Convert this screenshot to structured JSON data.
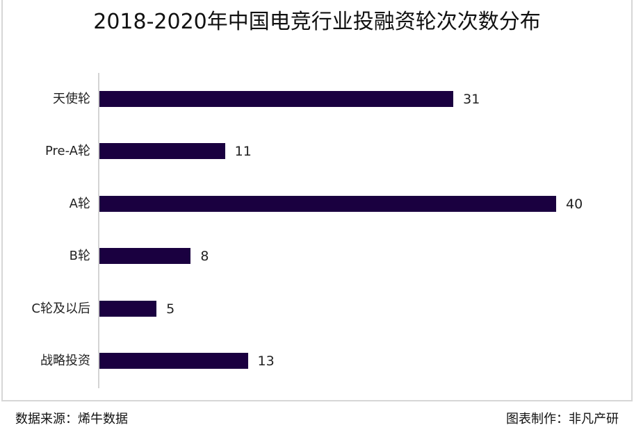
{
  "header": {
    "title": "2018-2020年中国电竞行业投融资轮次次数分布"
  },
  "footer": {
    "source": "数据来源：烯牛数据",
    "credit": "图表制作：非凡产研"
  },
  "colors": {
    "bar": "#1a0040",
    "axis": "#d4d4d4",
    "frame": "#d6d6d6"
  },
  "chart_data": {
    "type": "bar",
    "orientation": "horizontal",
    "title": "2018-2020年中国电竞行业投融资轮次次数分布",
    "xlabel": "",
    "ylabel": "",
    "categories": [
      "天使轮",
      "Pre-A轮",
      "A轮",
      "B轮",
      "C轮及以后",
      "战略投资"
    ],
    "values": [
      31,
      11,
      40,
      8,
      5,
      13
    ],
    "data_labels": [
      "31",
      "11",
      "40",
      "8",
      "5",
      "13"
    ],
    "xlim": [
      0,
      40
    ],
    "grid": false,
    "legend": null,
    "source": "数据来源：烯牛数据",
    "credit": "图表制作：非凡产研"
  }
}
